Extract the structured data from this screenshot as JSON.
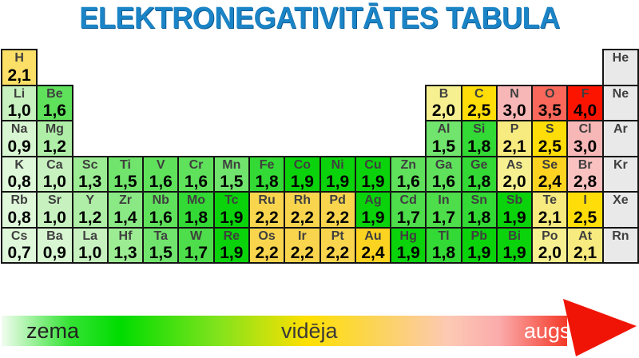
{
  "title": "ELEKTRONEGATIVITĀTES TABULA",
  "legend": {
    "low": "zema",
    "mid": "vidēja",
    "high": "augsta"
  },
  "colors": {
    "title_blue": "#1a84c6",
    "grid_border": "#141414",
    "arrow_red": "#ef1405",
    "value_colors": {
      "0,7": "#def8d9",
      "0,8": "#def8d9",
      "0,9": "#d7f6d1",
      "1,0": "#c7f2bf",
      "1,2": "#aeeea6",
      "1,3": "#9cec93",
      "1,4": "#8ae885",
      "1,5": "#70e46c",
      "1,6": "#60e15c",
      "1,7": "#4edd4b",
      "1,8": "#33d934",
      "1,9": "#0bd30b",
      "2,0": "#f6f091",
      "2,1": "#f7ea7e",
      "2,2": "#f9d54e",
      "2,4": "#fdd321",
      "2,5": "#ffdd08",
      "2,8": "#fac1c1",
      "3,0": "#f8b7b7",
      "3,5": "#f9685b",
      "4,0": "#fd1400",
      "noble": "#e9e9e9"
    }
  },
  "elements": [
    {
      "symbol": "H",
      "value": "2,1",
      "row": 1,
      "col": 1,
      "color": "#fbdf66"
    },
    {
      "symbol": "He",
      "value": "",
      "row": 1,
      "col": 18
    },
    {
      "symbol": "Li",
      "value": "1,0",
      "row": 2,
      "col": 1
    },
    {
      "symbol": "Be",
      "value": "1,6",
      "row": 2,
      "col": 2
    },
    {
      "symbol": "B",
      "value": "2,0",
      "row": 2,
      "col": 13
    },
    {
      "symbol": "C",
      "value": "2,5",
      "row": 2,
      "col": 14
    },
    {
      "symbol": "N",
      "value": "3,0",
      "row": 2,
      "col": 15
    },
    {
      "symbol": "O",
      "value": "3,5",
      "row": 2,
      "col": 16
    },
    {
      "symbol": "F",
      "value": "4,0",
      "row": 2,
      "col": 17
    },
    {
      "symbol": "Ne",
      "value": "",
      "row": 2,
      "col": 18
    },
    {
      "symbol": "Na",
      "value": "0,9",
      "row": 3,
      "col": 1
    },
    {
      "symbol": "Mg",
      "value": "1,2",
      "row": 3,
      "col": 2
    },
    {
      "symbol": "Al",
      "value": "1,5",
      "row": 3,
      "col": 13
    },
    {
      "symbol": "Si",
      "value": "1,8",
      "row": 3,
      "col": 14
    },
    {
      "symbol": "P",
      "value": "2,1",
      "row": 3,
      "col": 15
    },
    {
      "symbol": "S",
      "value": "2,5",
      "row": 3,
      "col": 16
    },
    {
      "symbol": "Cl",
      "value": "3,0",
      "row": 3,
      "col": 17
    },
    {
      "symbol": "Ar",
      "value": "",
      "row": 3,
      "col": 18
    },
    {
      "symbol": "K",
      "value": "0,8",
      "row": 4,
      "col": 1
    },
    {
      "symbol": "Ca",
      "value": "1,0",
      "row": 4,
      "col": 2
    },
    {
      "symbol": "Sc",
      "value": "1,3",
      "row": 4,
      "col": 3
    },
    {
      "symbol": "Ti",
      "value": "1,5",
      "row": 4,
      "col": 4
    },
    {
      "symbol": "V",
      "value": "1,6",
      "row": 4,
      "col": 5
    },
    {
      "symbol": "Cr",
      "value": "1,6",
      "row": 4,
      "col": 6
    },
    {
      "symbol": "Mn",
      "value": "1,5",
      "row": 4,
      "col": 7
    },
    {
      "symbol": "Fe",
      "value": "1,8",
      "row": 4,
      "col": 8
    },
    {
      "symbol": "Co",
      "value": "1,9",
      "row": 4,
      "col": 9
    },
    {
      "symbol": "Ni",
      "value": "1,9",
      "row": 4,
      "col": 10
    },
    {
      "symbol": "Cu",
      "value": "1,9",
      "row": 4,
      "col": 11
    },
    {
      "symbol": "Zn",
      "value": "1,6",
      "row": 4,
      "col": 12
    },
    {
      "symbol": "Ga",
      "value": "1,6",
      "row": 4,
      "col": 13
    },
    {
      "symbol": "Ge",
      "value": "1,8",
      "row": 4,
      "col": 14
    },
    {
      "symbol": "As",
      "value": "2,0",
      "row": 4,
      "col": 15
    },
    {
      "symbol": "Se",
      "value": "2,4",
      "row": 4,
      "col": 16
    },
    {
      "symbol": "Br",
      "value": "2,8",
      "row": 4,
      "col": 17
    },
    {
      "symbol": "Kr",
      "value": "",
      "row": 4,
      "col": 18
    },
    {
      "symbol": "Rb",
      "value": "0,8",
      "row": 5,
      "col": 1
    },
    {
      "symbol": "Sr",
      "value": "1,0",
      "row": 5,
      "col": 2
    },
    {
      "symbol": "Y",
      "value": "1,2",
      "row": 5,
      "col": 3
    },
    {
      "symbol": "Zr",
      "value": "1,4",
      "row": 5,
      "col": 4
    },
    {
      "symbol": "Nb",
      "value": "1,6",
      "row": 5,
      "col": 5
    },
    {
      "symbol": "Mo",
      "value": "1,8",
      "row": 5,
      "col": 6
    },
    {
      "symbol": "Tc",
      "value": "1,9",
      "row": 5,
      "col": 7
    },
    {
      "symbol": "Ru",
      "value": "2,2",
      "row": 5,
      "col": 8
    },
    {
      "symbol": "Rh",
      "value": "2,2",
      "row": 5,
      "col": 9
    },
    {
      "symbol": "Pd",
      "value": "2,2",
      "row": 5,
      "col": 10
    },
    {
      "symbol": "Ag",
      "value": "1,9",
      "row": 5,
      "col": 11
    },
    {
      "symbol": "Cd",
      "value": "1,7",
      "row": 5,
      "col": 12
    },
    {
      "symbol": "In",
      "value": "1,7",
      "row": 5,
      "col": 13
    },
    {
      "symbol": "Sn",
      "value": "1,8",
      "row": 5,
      "col": 14
    },
    {
      "symbol": "Sb",
      "value": "1,9",
      "row": 5,
      "col": 15
    },
    {
      "symbol": "Te",
      "value": "2,1",
      "row": 5,
      "col": 16
    },
    {
      "symbol": "I",
      "value": "2,5",
      "row": 5,
      "col": 17
    },
    {
      "symbol": "Xe",
      "value": "",
      "row": 5,
      "col": 18
    },
    {
      "symbol": "Cs",
      "value": "0,7",
      "row": 6,
      "col": 1
    },
    {
      "symbol": "Ba",
      "value": "0,9",
      "row": 6,
      "col": 2
    },
    {
      "symbol": "La",
      "value": "1,0",
      "row": 6,
      "col": 3
    },
    {
      "symbol": "Hf",
      "value": "1,3",
      "row": 6,
      "col": 4
    },
    {
      "symbol": "Ta",
      "value": "1,5",
      "row": 6,
      "col": 5
    },
    {
      "symbol": "W",
      "value": "1,7",
      "row": 6,
      "col": 6
    },
    {
      "symbol": "Re",
      "value": "1,9",
      "row": 6,
      "col": 7
    },
    {
      "symbol": "Os",
      "value": "2,2",
      "row": 6,
      "col": 8
    },
    {
      "symbol": "Ir",
      "value": "2,2",
      "row": 6,
      "col": 9
    },
    {
      "symbol": "Pt",
      "value": "2,2",
      "row": 6,
      "col": 10
    },
    {
      "symbol": "Au",
      "value": "2,4",
      "row": 6,
      "col": 11
    },
    {
      "symbol": "Hg",
      "value": "1,9",
      "row": 6,
      "col": 12
    },
    {
      "symbol": "Tl",
      "value": "1,8",
      "row": 6,
      "col": 13
    },
    {
      "symbol": "Pb",
      "value": "1,9",
      "row": 6,
      "col": 14
    },
    {
      "symbol": "Bi",
      "value": "1,9",
      "row": 6,
      "col": 15
    },
    {
      "symbol": "Po",
      "value": "2,0",
      "row": 6,
      "col": 16
    },
    {
      "symbol": "At",
      "value": "2,1",
      "row": 6,
      "col": 17
    },
    {
      "symbol": "Rn",
      "value": "",
      "row": 6,
      "col": 18
    }
  ]
}
